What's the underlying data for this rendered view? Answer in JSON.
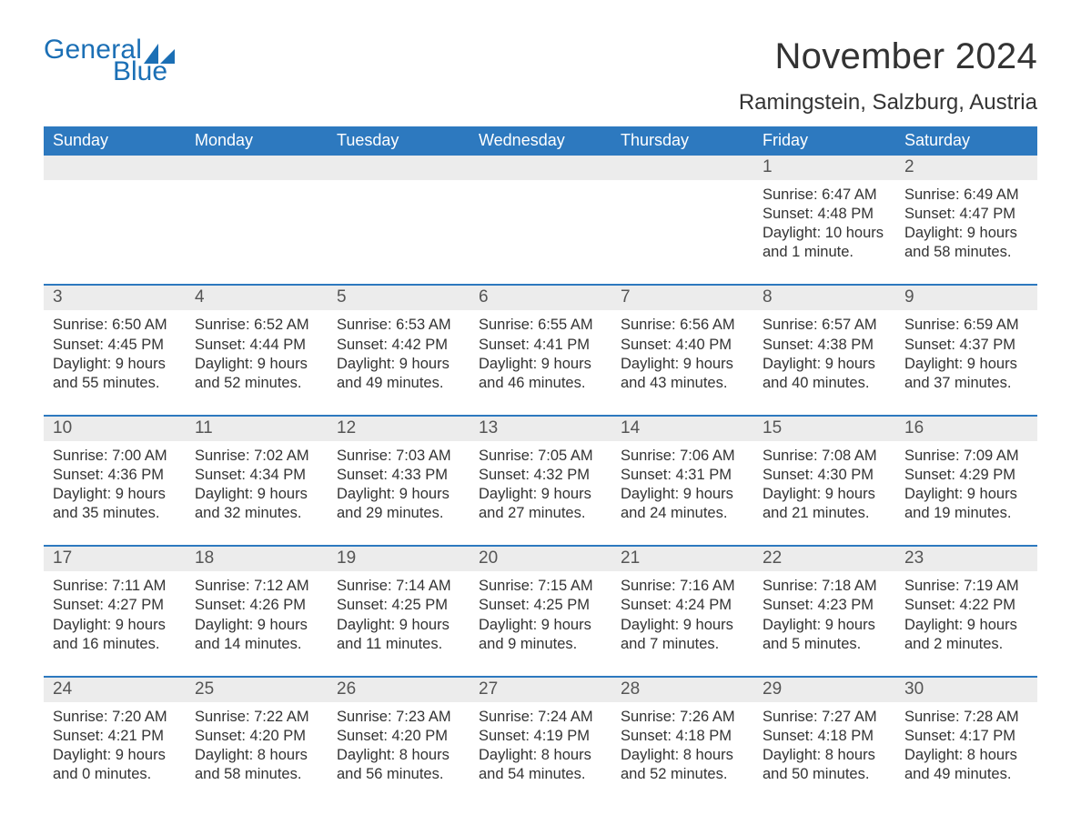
{
  "logo": {
    "text_general": "General",
    "text_blue": "Blue",
    "brand_color": "#1b6fb5"
  },
  "title": "November 2024",
  "location": "Ramingstein, Salzburg, Austria",
  "colors": {
    "header_bg": "#2d79bf",
    "header_text": "#ffffff",
    "daynum_bg": "#ececec",
    "daynum_text": "#555555",
    "body_text": "#333333",
    "rule": "#2d79bf",
    "page_bg": "#ffffff"
  },
  "typography": {
    "title_fontsize": 40,
    "location_fontsize": 24,
    "dow_fontsize": 18,
    "daynum_fontsize": 19,
    "detail_fontsize": 16.5,
    "font_family": "Arial"
  },
  "days_of_week": [
    "Sunday",
    "Monday",
    "Tuesday",
    "Wednesday",
    "Thursday",
    "Friday",
    "Saturday"
  ],
  "weeks": [
    [
      null,
      null,
      null,
      null,
      null,
      {
        "n": "1",
        "sunrise": "6:47 AM",
        "sunset": "4:48 PM",
        "daylight": "10 hours and 1 minute."
      },
      {
        "n": "2",
        "sunrise": "6:49 AM",
        "sunset": "4:47 PM",
        "daylight": "9 hours and 58 minutes."
      }
    ],
    [
      {
        "n": "3",
        "sunrise": "6:50 AM",
        "sunset": "4:45 PM",
        "daylight": "9 hours and 55 minutes."
      },
      {
        "n": "4",
        "sunrise": "6:52 AM",
        "sunset": "4:44 PM",
        "daylight": "9 hours and 52 minutes."
      },
      {
        "n": "5",
        "sunrise": "6:53 AM",
        "sunset": "4:42 PM",
        "daylight": "9 hours and 49 minutes."
      },
      {
        "n": "6",
        "sunrise": "6:55 AM",
        "sunset": "4:41 PM",
        "daylight": "9 hours and 46 minutes."
      },
      {
        "n": "7",
        "sunrise": "6:56 AM",
        "sunset": "4:40 PM",
        "daylight": "9 hours and 43 minutes."
      },
      {
        "n": "8",
        "sunrise": "6:57 AM",
        "sunset": "4:38 PM",
        "daylight": "9 hours and 40 minutes."
      },
      {
        "n": "9",
        "sunrise": "6:59 AM",
        "sunset": "4:37 PM",
        "daylight": "9 hours and 37 minutes."
      }
    ],
    [
      {
        "n": "10",
        "sunrise": "7:00 AM",
        "sunset": "4:36 PM",
        "daylight": "9 hours and 35 minutes."
      },
      {
        "n": "11",
        "sunrise": "7:02 AM",
        "sunset": "4:34 PM",
        "daylight": "9 hours and 32 minutes."
      },
      {
        "n": "12",
        "sunrise": "7:03 AM",
        "sunset": "4:33 PM",
        "daylight": "9 hours and 29 minutes."
      },
      {
        "n": "13",
        "sunrise": "7:05 AM",
        "sunset": "4:32 PM",
        "daylight": "9 hours and 27 minutes."
      },
      {
        "n": "14",
        "sunrise": "7:06 AM",
        "sunset": "4:31 PM",
        "daylight": "9 hours and 24 minutes."
      },
      {
        "n": "15",
        "sunrise": "7:08 AM",
        "sunset": "4:30 PM",
        "daylight": "9 hours and 21 minutes."
      },
      {
        "n": "16",
        "sunrise": "7:09 AM",
        "sunset": "4:29 PM",
        "daylight": "9 hours and 19 minutes."
      }
    ],
    [
      {
        "n": "17",
        "sunrise": "7:11 AM",
        "sunset": "4:27 PM",
        "daylight": "9 hours and 16 minutes."
      },
      {
        "n": "18",
        "sunrise": "7:12 AM",
        "sunset": "4:26 PM",
        "daylight": "9 hours and 14 minutes."
      },
      {
        "n": "19",
        "sunrise": "7:14 AM",
        "sunset": "4:25 PM",
        "daylight": "9 hours and 11 minutes."
      },
      {
        "n": "20",
        "sunrise": "7:15 AM",
        "sunset": "4:25 PM",
        "daylight": "9 hours and 9 minutes."
      },
      {
        "n": "21",
        "sunrise": "7:16 AM",
        "sunset": "4:24 PM",
        "daylight": "9 hours and 7 minutes."
      },
      {
        "n": "22",
        "sunrise": "7:18 AM",
        "sunset": "4:23 PM",
        "daylight": "9 hours and 5 minutes."
      },
      {
        "n": "23",
        "sunrise": "7:19 AM",
        "sunset": "4:22 PM",
        "daylight": "9 hours and 2 minutes."
      }
    ],
    [
      {
        "n": "24",
        "sunrise": "7:20 AM",
        "sunset": "4:21 PM",
        "daylight": "9 hours and 0 minutes."
      },
      {
        "n": "25",
        "sunrise": "7:22 AM",
        "sunset": "4:20 PM",
        "daylight": "8 hours and 58 minutes."
      },
      {
        "n": "26",
        "sunrise": "7:23 AM",
        "sunset": "4:20 PM",
        "daylight": "8 hours and 56 minutes."
      },
      {
        "n": "27",
        "sunrise": "7:24 AM",
        "sunset": "4:19 PM",
        "daylight": "8 hours and 54 minutes."
      },
      {
        "n": "28",
        "sunrise": "7:26 AM",
        "sunset": "4:18 PM",
        "daylight": "8 hours and 52 minutes."
      },
      {
        "n": "29",
        "sunrise": "7:27 AM",
        "sunset": "4:18 PM",
        "daylight": "8 hours and 50 minutes."
      },
      {
        "n": "30",
        "sunrise": "7:28 AM",
        "sunset": "4:17 PM",
        "daylight": "8 hours and 49 minutes."
      }
    ]
  ],
  "labels": {
    "sunrise": "Sunrise: ",
    "sunset": "Sunset: ",
    "daylight": "Daylight: "
  }
}
